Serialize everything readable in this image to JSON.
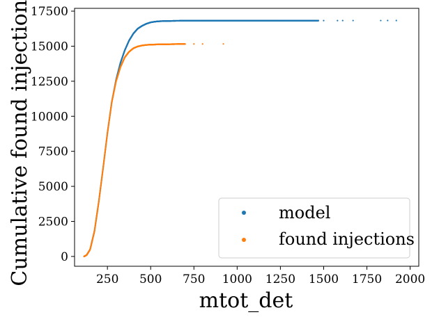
{
  "chart_data": {
    "type": "scatter",
    "title": "",
    "xlabel": "mtot_det",
    "ylabel": "Cumulative found injections",
    "xlim": [
      60,
      2050
    ],
    "ylim": [
      -700,
      17700
    ],
    "xticks": [
      250,
      500,
      750,
      1000,
      1250,
      1500,
      1750,
      2000
    ],
    "yticks": [
      0,
      2500,
      5000,
      7500,
      10000,
      12500,
      15000,
      17500
    ],
    "grid": false,
    "legend_position": "lower-right",
    "series": [
      {
        "name": "model",
        "color": "#1f77b4",
        "x": [
          115,
          130,
          150,
          175,
          200,
          225,
          250,
          275,
          300,
          325,
          350,
          375,
          400,
          425,
          450,
          475,
          500,
          525,
          550,
          600,
          650,
          700,
          800,
          900,
          1000,
          1100,
          1200,
          1300,
          1400,
          1450,
          1500,
          1580,
          1610,
          1670,
          1830,
          1870,
          1920
        ],
        "y": [
          0,
          100,
          500,
          1800,
          3900,
          6300,
          8800,
          11000,
          12600,
          13800,
          14700,
          15400,
          15900,
          16250,
          16450,
          16600,
          16700,
          16750,
          16780,
          16800,
          16810,
          16815,
          16818,
          16819,
          16820,
          16821,
          16822,
          16823,
          16824,
          16825,
          16826,
          16827,
          16828,
          16829,
          16830,
          16831,
          16832
        ]
      },
      {
        "name": "found injections",
        "color": "#ff7f0e",
        "x": [
          115,
          130,
          150,
          175,
          200,
          225,
          250,
          275,
          300,
          325,
          350,
          375,
          400,
          425,
          450,
          475,
          500,
          550,
          600,
          650,
          700,
          750,
          800,
          920
        ],
        "y": [
          0,
          100,
          500,
          1800,
          3900,
          6300,
          8800,
          11000,
          12500,
          13500,
          14200,
          14600,
          14850,
          14980,
          15050,
          15090,
          15110,
          15130,
          15140,
          15150,
          15155,
          15158,
          15160,
          15162
        ]
      }
    ]
  }
}
